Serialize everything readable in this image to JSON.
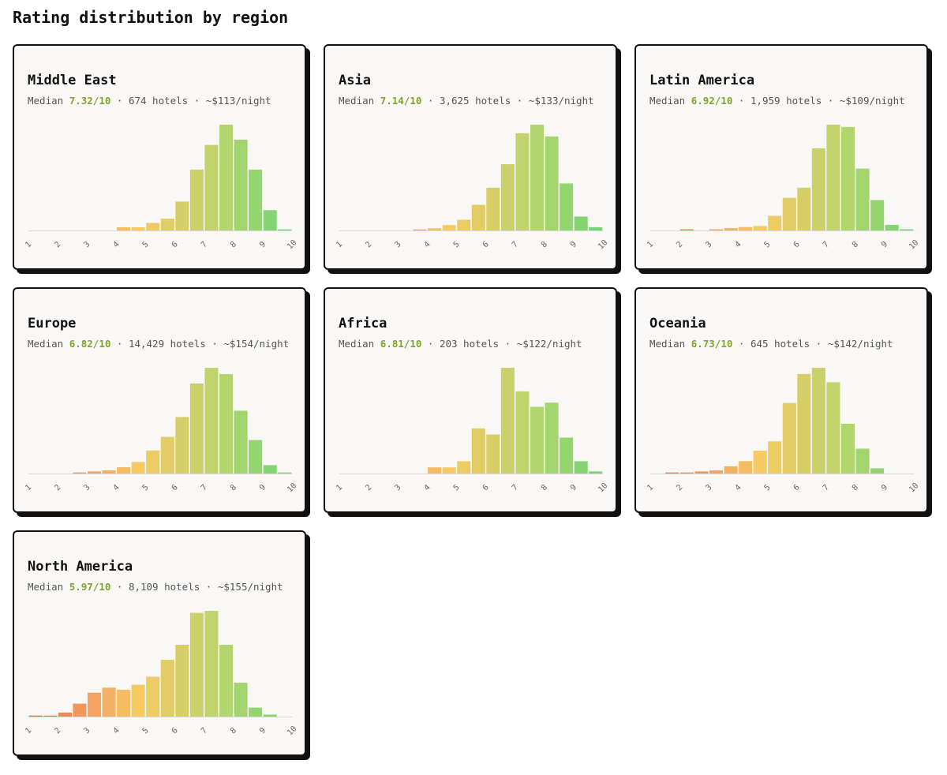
{
  "page": {
    "title": "Rating distribution by region"
  },
  "labels": {
    "median_prefix": "Median",
    "sep": " · "
  },
  "chart_data": [
    {
      "type": "bar",
      "title": "Middle East",
      "median": "7.32/10",
      "hotels": "674 hotels",
      "price": "~$113/night",
      "x": [
        1.0,
        1.5,
        2.0,
        2.5,
        3.0,
        3.5,
        4.0,
        4.5,
        5.0,
        5.5,
        6.0,
        6.5,
        7.0,
        7.5,
        8.0,
        8.5,
        9.0,
        9.5
      ],
      "values": [
        0,
        0,
        0,
        0,
        0,
        0,
        3,
        3,
        7,
        11,
        27,
        57,
        80,
        99,
        85,
        57,
        19,
        1
      ],
      "xlim": [
        1,
        10
      ],
      "xticks": [
        "1",
        "2",
        "3",
        "4",
        "5",
        "6",
        "7",
        "8",
        "9",
        "10"
      ]
    },
    {
      "type": "bar",
      "title": "Asia",
      "median": "7.14/10",
      "hotels": "3,625 hotels",
      "price": "~$133/night",
      "x": [
        1.0,
        1.5,
        2.0,
        2.5,
        3.0,
        3.5,
        4.0,
        4.5,
        5.0,
        5.5,
        6.0,
        6.5,
        7.0,
        7.5,
        8.0,
        8.5,
        9.0,
        9.5
      ],
      "values": [
        0,
        0,
        0,
        0,
        0,
        1,
        2,
        5,
        10,
        24,
        40,
        62,
        91,
        99,
        88,
        44,
        13,
        3
      ],
      "xlim": [
        1,
        10
      ],
      "xticks": [
        "1",
        "2",
        "3",
        "4",
        "5",
        "6",
        "7",
        "8",
        "9",
        "10"
      ]
    },
    {
      "type": "bar",
      "title": "Latin America",
      "median": "6.92/10",
      "hotels": "1,959 hotels",
      "price": "~$109/night",
      "x": [
        1.0,
        1.5,
        2.0,
        2.5,
        3.0,
        3.5,
        4.0,
        4.5,
        5.0,
        5.5,
        6.0,
        6.5,
        7.0,
        7.5,
        8.0,
        8.5,
        9.0,
        9.5
      ],
      "values": [
        0,
        0,
        1,
        0,
        1,
        2,
        3,
        4,
        13,
        29,
        38,
        73,
        94,
        92,
        55,
        27,
        5,
        1
      ],
      "xlim": [
        1,
        10
      ],
      "xticks": [
        "1",
        "2",
        "3",
        "4",
        "5",
        "6",
        "7",
        "8",
        "9",
        "10"
      ]
    },
    {
      "type": "bar",
      "title": "Europe",
      "median": "6.82/10",
      "hotels": "14,429 hotels",
      "price": "~$154/night",
      "x": [
        1.0,
        1.5,
        2.0,
        2.5,
        3.0,
        3.5,
        4.0,
        4.5,
        5.0,
        5.5,
        6.0,
        6.5,
        7.0,
        7.5,
        8.0,
        8.5,
        9.0,
        9.5
      ],
      "values": [
        0,
        0,
        0,
        1,
        2,
        3,
        6,
        11,
        22,
        35,
        54,
        86,
        101,
        95,
        60,
        32,
        8,
        1
      ],
      "xlim": [
        1,
        10
      ],
      "xticks": [
        "1",
        "2",
        "3",
        "4",
        "5",
        "6",
        "7",
        "8",
        "9",
        "10"
      ]
    },
    {
      "type": "bar",
      "title": "Africa",
      "median": "6.81/10",
      "hotels": "203 hotels",
      "price": "~$122/night",
      "x": [
        1.0,
        1.5,
        2.0,
        2.5,
        3.0,
        3.5,
        4.0,
        4.5,
        5.0,
        5.5,
        6.0,
        6.5,
        7.0,
        7.5,
        8.0,
        8.5,
        9.0,
        9.5
      ],
      "values": [
        0,
        0,
        0,
        0,
        0,
        0,
        6,
        6,
        12,
        44,
        38,
        103,
        80,
        65,
        69,
        35,
        12,
        2
      ],
      "xlim": [
        1,
        10
      ],
      "xticks": [
        "1",
        "2",
        "3",
        "4",
        "5",
        "6",
        "7",
        "8",
        "9",
        "10"
      ]
    },
    {
      "type": "bar",
      "title": "Oceania",
      "median": "6.73/10",
      "hotels": "645 hotels",
      "price": "~$142/night",
      "x": [
        1.0,
        1.5,
        2.0,
        2.5,
        3.0,
        3.5,
        4.0,
        4.5,
        5.0,
        5.5,
        6.0,
        6.5,
        7.0,
        7.5,
        8.0,
        8.5,
        9.0,
        9.5
      ],
      "values": [
        0,
        1,
        1,
        2,
        3,
        7,
        12,
        22,
        31,
        68,
        96,
        102,
        88,
        48,
        24,
        5,
        0,
        0
      ],
      "xlim": [
        1,
        10
      ],
      "xticks": [
        "1",
        "2",
        "3",
        "4",
        "5",
        "6",
        "7",
        "8",
        "9",
        "10"
      ]
    },
    {
      "type": "bar",
      "title": "North America",
      "median": "5.97/10",
      "hotels": "8,109 hotels",
      "price": "~$155/night",
      "x": [
        1.0,
        1.5,
        2.0,
        2.5,
        3.0,
        3.5,
        4.0,
        4.5,
        5.0,
        5.5,
        6.0,
        6.5,
        7.0,
        7.5,
        8.0,
        8.5,
        9.0,
        9.5
      ],
      "values": [
        1,
        1,
        4,
        13,
        24,
        29,
        27,
        32,
        40,
        57,
        72,
        104,
        106,
        72,
        34,
        9,
        2,
        0
      ],
      "xlim": [
        1,
        10
      ],
      "xticks": [
        "1",
        "2",
        "3",
        "4",
        "5",
        "6",
        "7",
        "8",
        "9",
        "10"
      ]
    }
  ],
  "colors": {
    "background": "#ffffff",
    "card_bg": "#f9f8f6",
    "border": "#111111",
    "median_text": "#7fa52a",
    "bar_scale": [
      "#e8614a",
      "#ee8a55",
      "#f3ad63",
      "#f6cb63",
      "#d9cd68",
      "#bcd56c",
      "#94d56f",
      "#6ed37a"
    ]
  }
}
